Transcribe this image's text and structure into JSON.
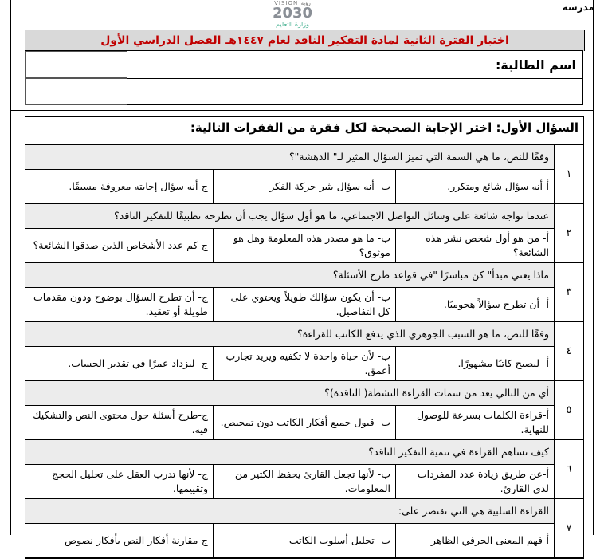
{
  "header": {
    "school_label": "مدرسة",
    "logo": {
      "vision": "VISION رؤية",
      "number": "2030",
      "ministry": "وزارة التعليم"
    },
    "exam_title": "اختبار الفترة الثانية لمادة التفكير الناقد لعام ١٤٤٧هـ الفصل الدراسي الأول",
    "student_name_label": "اسم الطالبة:"
  },
  "section": {
    "title": "السؤال الأول: اختر الإجابة الصحيحة لكل فقرة من الفقرات التالية:",
    "questions": [
      {
        "number": "١",
        "text": "وفقًا للنص، ما هي السمة التي تميز السؤال المثير لـ\" الدهشة\"؟",
        "a": "أ-أنه سؤال شائع ومتكرر.",
        "b": "ب-   أنه سؤال يثير حركة الفكر",
        "c": "ج-أنه سؤال إجابته معروفة مسبقًا."
      },
      {
        "number": "٢",
        "text": "عندما تواجه شائعة على وسائل التواصل الاجتماعي، ما هو أول سؤال يجب أن تطرحه تطبيقًا للتفكير الناقد؟",
        "a": "أ-   من هو أول شخص نشر هذه الشائعة؟",
        "b": "ب-   ما هو مصدر هذه المعلومة وهل هو موثوق؟",
        "c": "ج-كم عدد الأشخاص الذين صدقوا الشائعة؟"
      },
      {
        "number": "٣",
        "text": "ماذا يعني مبدأ\" كن مباشرًا \"في قواعد طرح الأسئلة؟",
        "a": "أ-   أن تطرح سؤالاً هجوميًا.",
        "b": "ب-   أن يكون سؤالك طويلاً ويحتوي على كل التفاصيل.",
        "c": "ج-  أن تطرح السؤال بوضوح ودون مقدمات طويلة أو تعقيد."
      },
      {
        "number": "٤",
        "text": "وفقًا للنص، ما هو السبب الجوهري الذي يدفع الكاتب للقراءة؟",
        "a": "أ-   ليصبح كاتبًا مشهورًا.",
        "b": "ب-   لأن حياة واحدة لا تكفيه ويريد تجارب أعمق.",
        "c": "ج-  ليزداد عمرًا في تقدير الحساب."
      },
      {
        "number": "٥",
        "text": "أي من التالي يعد من سمات القراءة النشطة( الناقدة)؟",
        "a": "أ-قراءة الكلمات بسرعة للوصول للنهاية.",
        "b": "ب-   قبول جميع أفكار الكاتب دون تمحيص.",
        "c": "ج-طرح أسئلة حول محتوى النص والتشكيك فيه."
      },
      {
        "number": "٦",
        "text": "كيف تساهم القراءة في تنمية التفكير الناقد؟",
        "a": "أ-عن طريق زيادة عدد المفردات لدى القارئ.",
        "b": "ب-   لأنها تجعل القارئ يحفظ الكثير من المعلومات.",
        "c": "ج- لأنها تدرب العقل على تحليل الحجج وتقييمها."
      },
      {
        "number": "٧",
        "text": "القراءة السلبية هي التي تقتصر على:",
        "a": "أ-فهم المعنى الحرفي الظاهر",
        "b": "ب-   تحليل أسلوب الكاتب",
        "c": "ج-مقارنة أفكار النص بأفكار نصوص"
      }
    ]
  },
  "colors": {
    "title_text": "#c00000",
    "title_bg": "#d9d9d9",
    "question_bg": "#ececec"
  }
}
